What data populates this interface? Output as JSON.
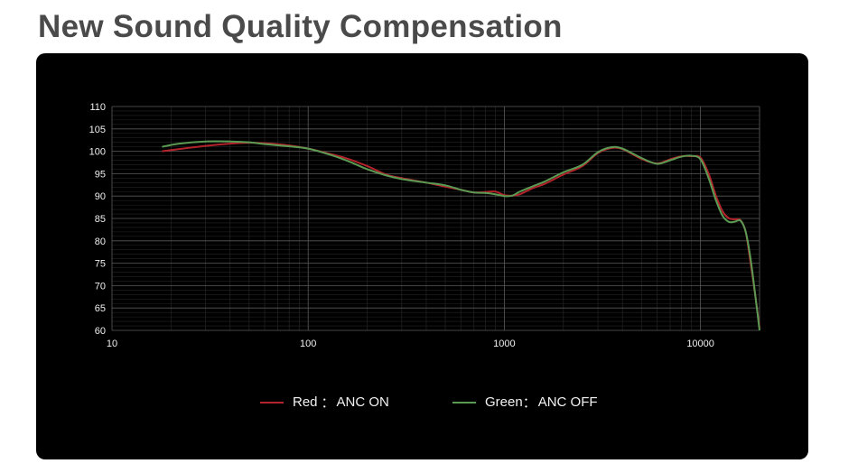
{
  "page": {
    "title": "New Sound Quality Compensation"
  },
  "colors": {
    "red_curve": "#b3232b",
    "green_curve": "#5b9a52",
    "background": "#000000"
  },
  "legend": [
    {
      "name": "Red",
      "separator": "：",
      "desc": "ANC ON",
      "color": "#b3232b"
    },
    {
      "name": "Green",
      "separator": "：",
      "desc": "ANC OFF",
      "color": "#5b9a52"
    }
  ],
  "chart_data": {
    "type": "line",
    "title": "",
    "xlabel": "",
    "ylabel": "",
    "x_scale": "log",
    "xlim": [
      10,
      20000
    ],
    "ylim": [
      60,
      110
    ],
    "x_ticks": [
      10,
      100,
      1000,
      10000
    ],
    "x_tick_labels": [
      "10",
      "100",
      "1000",
      "10000"
    ],
    "y_ticks": [
      110,
      105,
      100,
      95,
      90,
      85,
      80,
      75,
      70,
      65,
      60
    ],
    "y_tick_labels": [
      "110",
      "105",
      "100",
      "95",
      "90",
      "85",
      "80",
      "75",
      "70",
      "65",
      "60"
    ],
    "grid": true,
    "legend_position": "bottom-center",
    "series": [
      {
        "name": "Red",
        "x": [
          18,
          22,
          30,
          40,
          50,
          60,
          80,
          100,
          130,
          160,
          200,
          250,
          300,
          400,
          500,
          600,
          700,
          800,
          900,
          1000,
          1100,
          1200,
          1400,
          1600,
          2000,
          2500,
          3000,
          3500,
          4000,
          5000,
          6000,
          7000,
          8000,
          9000,
          10000,
          11000,
          12000,
          13000,
          14000,
          15000,
          16000,
          17000,
          18000,
          19000,
          20000
        ],
        "y": [
          100,
          100.5,
          101.2,
          101.7,
          101.9,
          101.8,
          101.3,
          100.6,
          99.4,
          98.3,
          96.7,
          94.8,
          94.0,
          93.0,
          92.1,
          91.4,
          90.8,
          90.9,
          91.0,
          90.2,
          90.1,
          90.4,
          91.8,
          92.7,
          94.8,
          96.7,
          99.6,
          100.7,
          100.5,
          98.3,
          97.3,
          98.2,
          98.9,
          98.9,
          98.6,
          95.0,
          90.0,
          86.5,
          85.0,
          84.8,
          84.6,
          82.0,
          75.0,
          68.0,
          60.5
        ]
      },
      {
        "name": "Green",
        "x": [
          18,
          22,
          30,
          40,
          50,
          60,
          80,
          100,
          130,
          160,
          200,
          250,
          300,
          400,
          500,
          600,
          700,
          800,
          900,
          1000,
          1100,
          1200,
          1400,
          1600,
          2000,
          2500,
          3000,
          3500,
          4000,
          5000,
          6000,
          7000,
          8000,
          9000,
          10000,
          11000,
          12000,
          13000,
          14000,
          15000,
          16000,
          17000,
          18000,
          19000,
          20000
        ],
        "y": [
          101,
          101.7,
          102.2,
          102.2,
          102.0,
          101.6,
          101.1,
          100.6,
          99.2,
          97.8,
          96.0,
          94.6,
          93.8,
          93.0,
          92.4,
          91.4,
          90.8,
          90.7,
          90.4,
          90.0,
          90.1,
          91.0,
          92.2,
          93.2,
          95.3,
          97.0,
          99.8,
          100.9,
          100.6,
          98.5,
          97.2,
          98.0,
          98.8,
          99.0,
          98.2,
          94.0,
          89.0,
          85.5,
          84.2,
          84.3,
          84.5,
          82.0,
          76.0,
          68.0,
          60.0
        ]
      }
    ]
  }
}
